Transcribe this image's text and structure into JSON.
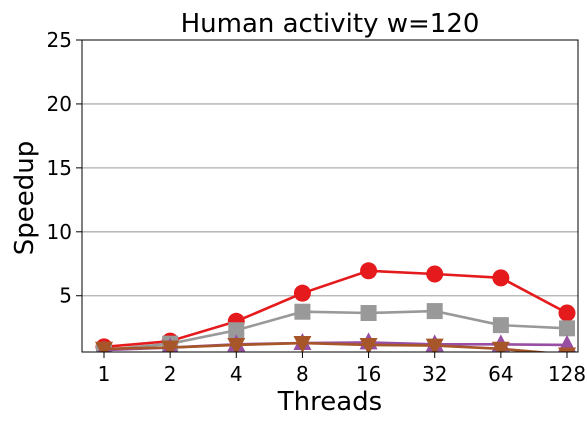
{
  "chart_data": {
    "type": "line",
    "title": "Human activity w=120",
    "xlabel": "Threads",
    "ylabel": "Speedup",
    "categories": [
      "1",
      "2",
      "4",
      "8",
      "16",
      "32",
      "64",
      "128"
    ],
    "ylim": [
      0.6,
      25
    ],
    "yticks": [
      5,
      10,
      15,
      20,
      25
    ],
    "grid": "horizontal",
    "series": [
      {
        "color": "#e41a1c",
        "marker": "circle",
        "values": [
          1.0,
          1.45,
          3.0,
          5.2,
          6.95,
          6.7,
          6.4,
          3.65
        ]
      },
      {
        "color": "#999999",
        "marker": "square",
        "values": [
          0.75,
          1.25,
          2.3,
          3.75,
          3.65,
          3.8,
          2.7,
          2.45
        ]
      },
      {
        "color": "#984ea3",
        "marker": "triangle-up",
        "values": [
          0.75,
          0.95,
          1.2,
          1.3,
          1.35,
          1.2,
          1.2,
          1.15
        ]
      },
      {
        "color": "#a65628",
        "marker": "triangle-down",
        "values": [
          0.85,
          0.95,
          1.15,
          1.3,
          1.15,
          1.1,
          0.85,
          0.4
        ]
      }
    ]
  }
}
